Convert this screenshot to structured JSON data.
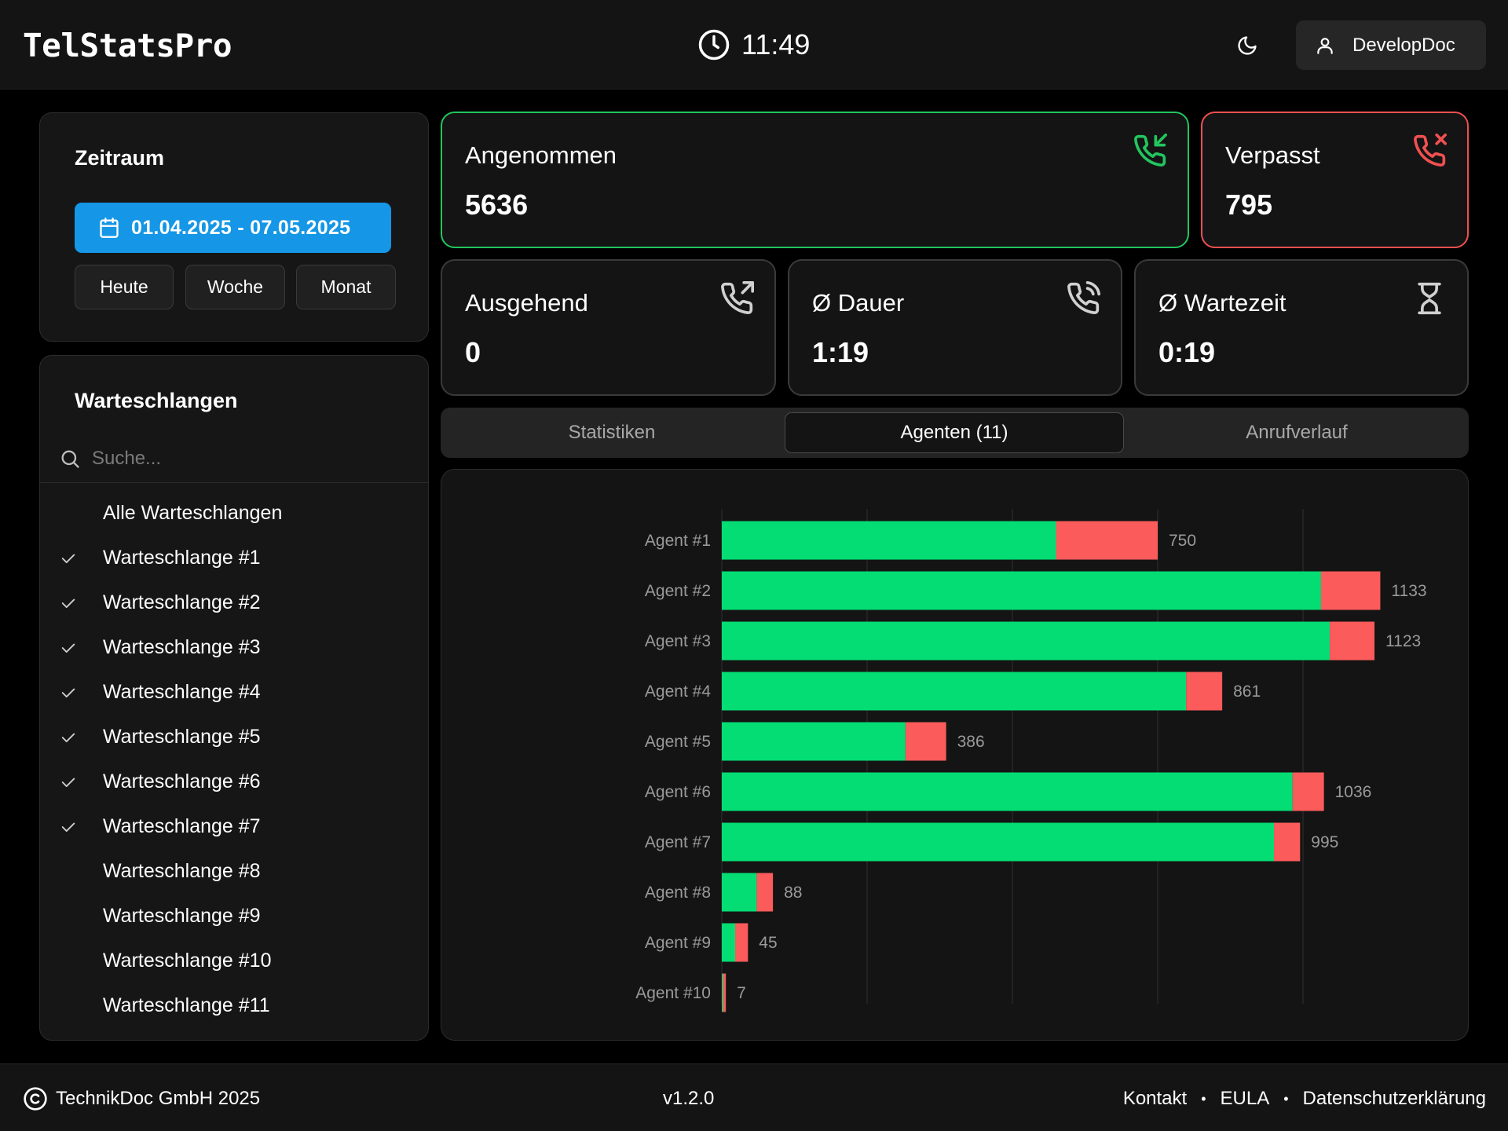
{
  "header": {
    "app_title": "TelStatsPro",
    "clock_icon": "clock-icon",
    "time": "11:49",
    "theme_icon": "moon-icon",
    "user_icon": "user-icon",
    "user_name": "DevelopDoc"
  },
  "period": {
    "title": "Zeitraum",
    "date_range": "01.04.2025 - 07.05.2025",
    "date_icon": "calendar-icon",
    "buttons": [
      "Heute",
      "Woche",
      "Monat"
    ]
  },
  "queues": {
    "title": "Warteschlangen",
    "search_placeholder": "Suche...",
    "search_icon": "search-icon",
    "items": [
      {
        "label": "Alle Warteschlangen",
        "checked": false
      },
      {
        "label": "Warteschlange #1",
        "checked": true
      },
      {
        "label": "Warteschlange #2",
        "checked": true
      },
      {
        "label": "Warteschlange #3",
        "checked": true
      },
      {
        "label": "Warteschlange #4",
        "checked": true
      },
      {
        "label": "Warteschlange #5",
        "checked": true
      },
      {
        "label": "Warteschlange #6",
        "checked": true
      },
      {
        "label": "Warteschlange #7",
        "checked": true
      },
      {
        "label": "Warteschlange #8",
        "checked": false
      },
      {
        "label": "Warteschlange #9",
        "checked": false
      },
      {
        "label": "Warteschlange #10",
        "checked": false
      },
      {
        "label": "Warteschlange #11",
        "checked": false
      }
    ]
  },
  "stats": {
    "accepted": {
      "label": "Angenommen",
      "value": "5636",
      "icon": "phone-incoming-icon",
      "color": "#22c55e"
    },
    "missed": {
      "label": "Verpasst",
      "value": "795",
      "icon": "phone-missed-icon",
      "color": "#f05050"
    },
    "outgoing": {
      "label": "Ausgehend",
      "value": "0",
      "icon": "phone-outgoing-icon"
    },
    "duration": {
      "label": "Ø Dauer",
      "value": "1:19",
      "icon": "phone-call-icon"
    },
    "wait": {
      "label": "Ø Wartezeit",
      "value": "0:19",
      "icon": "hourglass-icon"
    }
  },
  "tabs": [
    "Statistiken",
    "Agenten (11)",
    "Anrufverlauf"
  ],
  "active_tab": 1,
  "chart_data": {
    "type": "bar",
    "orientation": "horizontal",
    "stacked": true,
    "categories": [
      "Agent #1",
      "Agent #2",
      "Agent #3",
      "Agent #4",
      "Agent #5",
      "Agent #6",
      "Agent #7",
      "Agent #8",
      "Agent #9",
      "Agent #10"
    ],
    "series": [
      {
        "values": [
          575,
          1031,
          1046,
          799,
          316,
          982,
          950,
          60,
          23,
          2
        ],
        "color": "#04dd73"
      },
      {
        "values": [
          175,
          102,
          77,
          62,
          70,
          54,
          45,
          28,
          22,
          5
        ],
        "color": "#fb5b5b"
      }
    ],
    "totals": [
      750,
      1133,
      1123,
      861,
      386,
      1036,
      995,
      88,
      45,
      7
    ],
    "xlim": [
      0,
      1200
    ],
    "grid": true
  },
  "footer": {
    "copyright_icon": "copyright-icon",
    "copyright": "TechnikDoc GmbH 2025",
    "version": "v1.2.0",
    "links": [
      "Kontakt",
      "EULA",
      "Datenschutzerklärung"
    ],
    "separator": "•"
  }
}
